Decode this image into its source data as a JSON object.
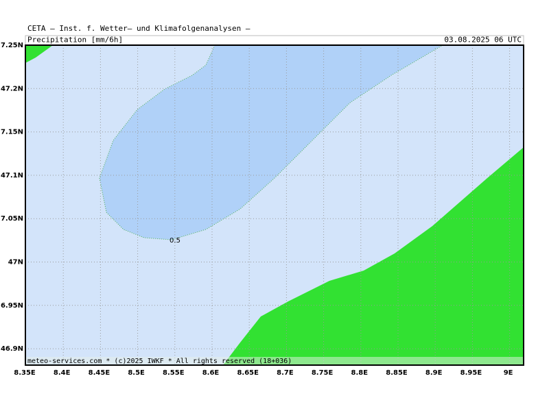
{
  "header": {
    "source": "CETA – Inst. f. Wetter– und Klimafolgenanalysen –",
    "variable": "Precipitation [mm/6h]",
    "valid": "03.08.2025 06 UTC"
  },
  "map": {
    "lon_labels": [
      "8.35E",
      "8.4E",
      "8.45E",
      "8.5E",
      "8.55E",
      "8.6E",
      "8.65E",
      "8.7E",
      "8.75E",
      "8.8E",
      "8.85E",
      "8.9E",
      "8.95E",
      "9E"
    ],
    "lat_labels": [
      "7.25N",
      "47.2N",
      "7.15N",
      "47.1N",
      "7.05N",
      "47N",
      "6.95N",
      "46.9N"
    ],
    "contour_label": "0.5"
  },
  "footer": "meteo-services.com * (c)2025 IWKF * All rights reserved (18+036)"
}
